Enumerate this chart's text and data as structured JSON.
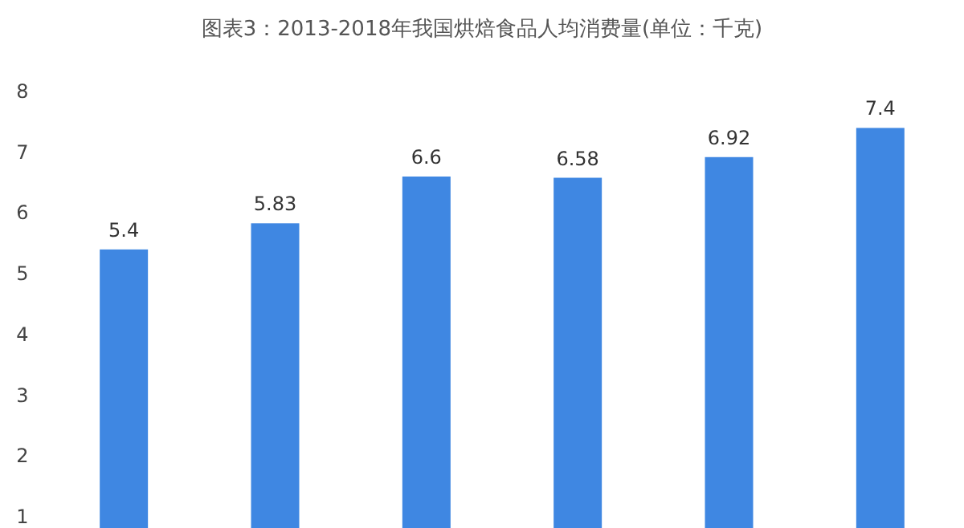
{
  "chart_data": {
    "type": "bar",
    "title": "图表3：2013-2018年我国烘焙食品人均消费量(单位：千克)",
    "categories": [
      null,
      null,
      null,
      null,
      null,
      null
    ],
    "values": [
      5.4,
      5.83,
      6.6,
      6.58,
      6.92,
      7.4
    ],
    "color": "#3f87e2",
    "ylim": [
      1,
      8
    ],
    "yticks": [
      1,
      2,
      3,
      4,
      5,
      6,
      7,
      8
    ],
    "data_labels": true
  }
}
